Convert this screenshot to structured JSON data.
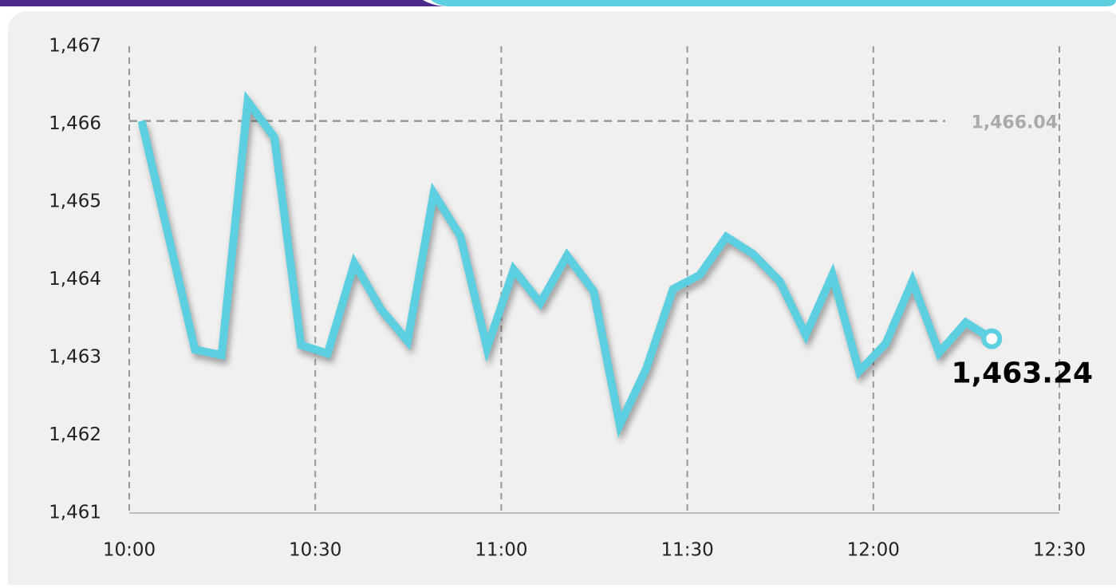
{
  "chart_data": {
    "type": "line",
    "x": [
      602,
      606.3,
      610.6,
      614.9,
      619.1,
      623.4,
      627.7,
      632,
      636.3,
      640.6,
      644.9,
      649.1,
      653.4,
      657.7,
      662,
      666.3,
      670.6,
      674.9,
      679.1,
      683.4,
      687.7,
      692,
      696.3,
      700.6,
      704.9,
      709.1,
      713.4,
      717.7,
      722,
      726.3,
      730.6,
      734.9,
      739.1
    ],
    "values": [
      1466.04,
      1464.57,
      1463.1,
      1463.03,
      1466.29,
      1465.83,
      1463.16,
      1463.05,
      1464.21,
      1463.62,
      1463.21,
      1465.11,
      1464.56,
      1463.12,
      1464.13,
      1463.7,
      1464.31,
      1463.85,
      1462.13,
      1462.86,
      1463.88,
      1464.06,
      1464.55,
      1464.33,
      1463.98,
      1463.29,
      1464.06,
      1462.82,
      1463.18,
      1463.98,
      1463.06,
      1463.45,
      1463.24
    ],
    "value_labels": [
      null,
      null,
      null,
      null,
      null,
      null,
      null,
      null,
      null,
      null,
      null,
      null,
      null,
      null,
      null,
      null,
      null,
      null,
      null,
      null,
      null,
      null,
      null,
      null,
      null,
      null,
      null,
      null,
      null,
      null,
      null,
      null,
      "1,463.24"
    ],
    "color": "#5ccfe0",
    "xlim": [
      600,
      750
    ],
    "xticks": [
      {
        "value": 600,
        "label": "10:00"
      },
      {
        "value": 630,
        "label": "10:30"
      },
      {
        "value": 660,
        "label": "11:00"
      },
      {
        "value": 690,
        "label": "11:30"
      },
      {
        "value": 720,
        "label": "12:00"
      },
      {
        "value": 750,
        "label": "12:30"
      }
    ],
    "ylim": [
      1461,
      1467
    ],
    "yticks": [
      {
        "value": 1461,
        "label": "1,461"
      },
      {
        "value": 1462,
        "label": "1,462"
      },
      {
        "value": 1463,
        "label": "1,463"
      },
      {
        "value": 1464,
        "label": "1,464"
      },
      {
        "value": 1465,
        "label": "1,465"
      },
      {
        "value": 1466,
        "label": "1,466"
      },
      {
        "value": 1467,
        "label": "1,467"
      }
    ],
    "reference_line": {
      "value": 1466.04,
      "label": "1,466.04"
    },
    "grid": "x"
  }
}
